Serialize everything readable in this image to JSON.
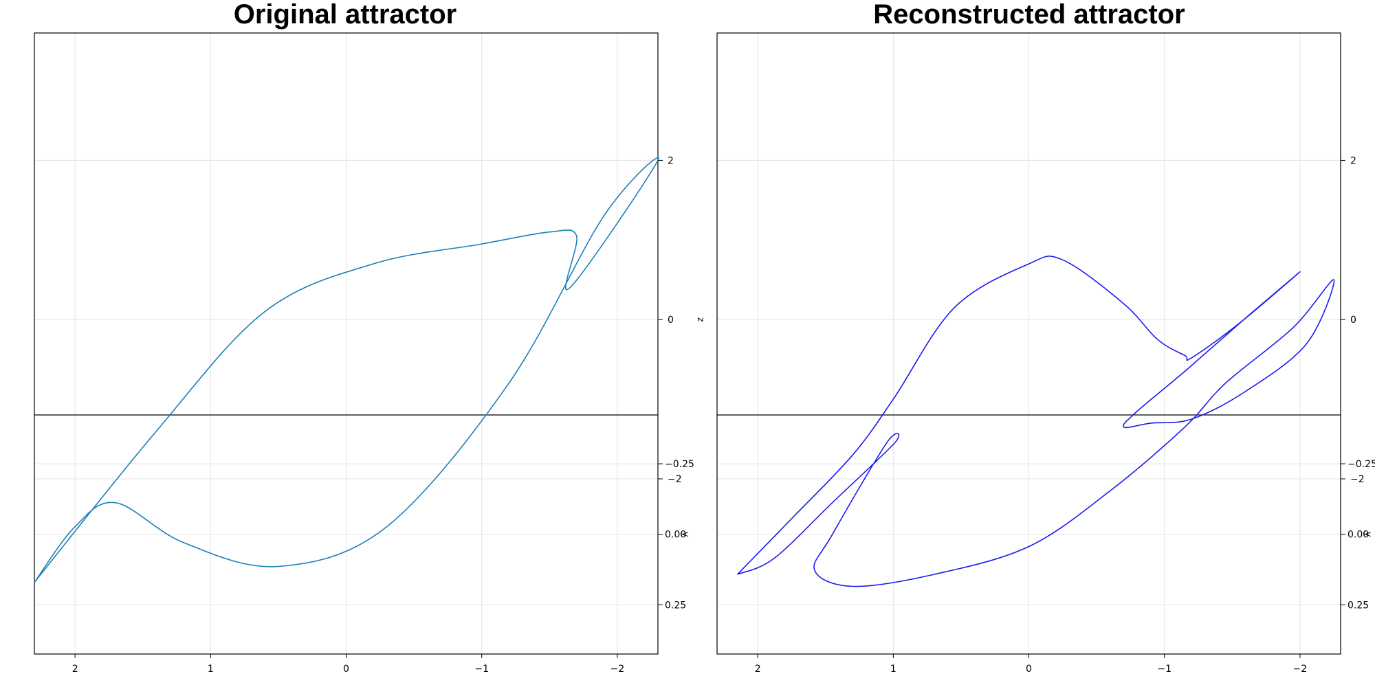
{
  "chart_data": [
    {
      "type": "line",
      "projection": "3d",
      "title": "Original attractor",
      "xlabel": "",
      "ylabel": "y",
      "zlabel": "z",
      "x_ticks": [
        "2",
        "1",
        "0",
        "−1",
        "−2"
      ],
      "z_ticks": [
        "2",
        "0",
        "−2"
      ],
      "y_ticks": [
        "−0.25",
        "0.00",
        "0.25"
      ],
      "x_range": [
        2.3,
        -2.3
      ],
      "z_range": [
        -4.2,
        3.6
      ],
      "y_range": [
        -0.35,
        0.4
      ],
      "grid": true,
      "color": "#1a7fb8",
      "series": [
        {
          "x": [
            2.3,
            1.4,
            0.6,
            -0.2,
            -1.0,
            -1.5,
            -1.7,
            -1.65,
            -2.3,
            -1.9,
            -1.2,
            -0.3,
            0.5,
            1.2,
            1.7,
            2.0,
            2.3
          ],
          "z": [
            -3.3,
            -1.4,
            0.1,
            0.7,
            0.95,
            1.1,
            1.05,
            0.4,
            2.0,
            1.3,
            -0.8,
            -2.6,
            -3.1,
            -2.8,
            -2.3,
            -2.6,
            -3.3
          ]
        }
      ]
    },
    {
      "type": "line",
      "projection": "3d",
      "title": "Reconstructed attractor",
      "xlabel": "",
      "ylabel": "y",
      "zlabel": "z",
      "x_ticks": [
        "2",
        "1",
        "0",
        "−1",
        "−2"
      ],
      "z_ticks": [
        "2",
        "0",
        "−2"
      ],
      "y_ticks": [
        "−0.25",
        "0.00",
        "0.25"
      ],
      "x_range": [
        2.3,
        -2.3
      ],
      "z_range": [
        -4.2,
        3.6
      ],
      "y_range": [
        -0.35,
        0.4
      ],
      "grid": true,
      "color": "#1a1aef",
      "series": [
        {
          "x": [
            2.15,
            1.75,
            1.3,
            1.0,
            0.55,
            0.0,
            -0.25,
            -0.7,
            -0.95,
            -1.15,
            -1.2,
            -1.55,
            -2.0,
            -1.62,
            -1.15,
            -0.8,
            -0.7,
            -0.9,
            -1.2,
            -1.6,
            -2.05,
            -2.25,
            -1.95,
            -1.45,
            -1.15,
            -0.6,
            0.0,
            0.7,
            1.3,
            1.58,
            1.45,
            1.05,
            0.99,
            1.45,
            1.88,
            2.15
          ],
          "z": [
            -3.2,
            -2.5,
            -1.7,
            -1.0,
            0.15,
            0.7,
            0.75,
            0.2,
            -0.25,
            -0.45,
            -0.48,
            -0.05,
            0.6,
            0.05,
            -0.65,
            -1.15,
            -1.35,
            -1.3,
            -1.25,
            -0.9,
            -0.3,
            0.5,
            -0.1,
            -0.8,
            -1.35,
            -2.15,
            -2.85,
            -3.2,
            -3.35,
            -3.15,
            -2.7,
            -1.55,
            -1.55,
            -2.3,
            -3.0,
            -3.2
          ]
        }
      ]
    }
  ]
}
